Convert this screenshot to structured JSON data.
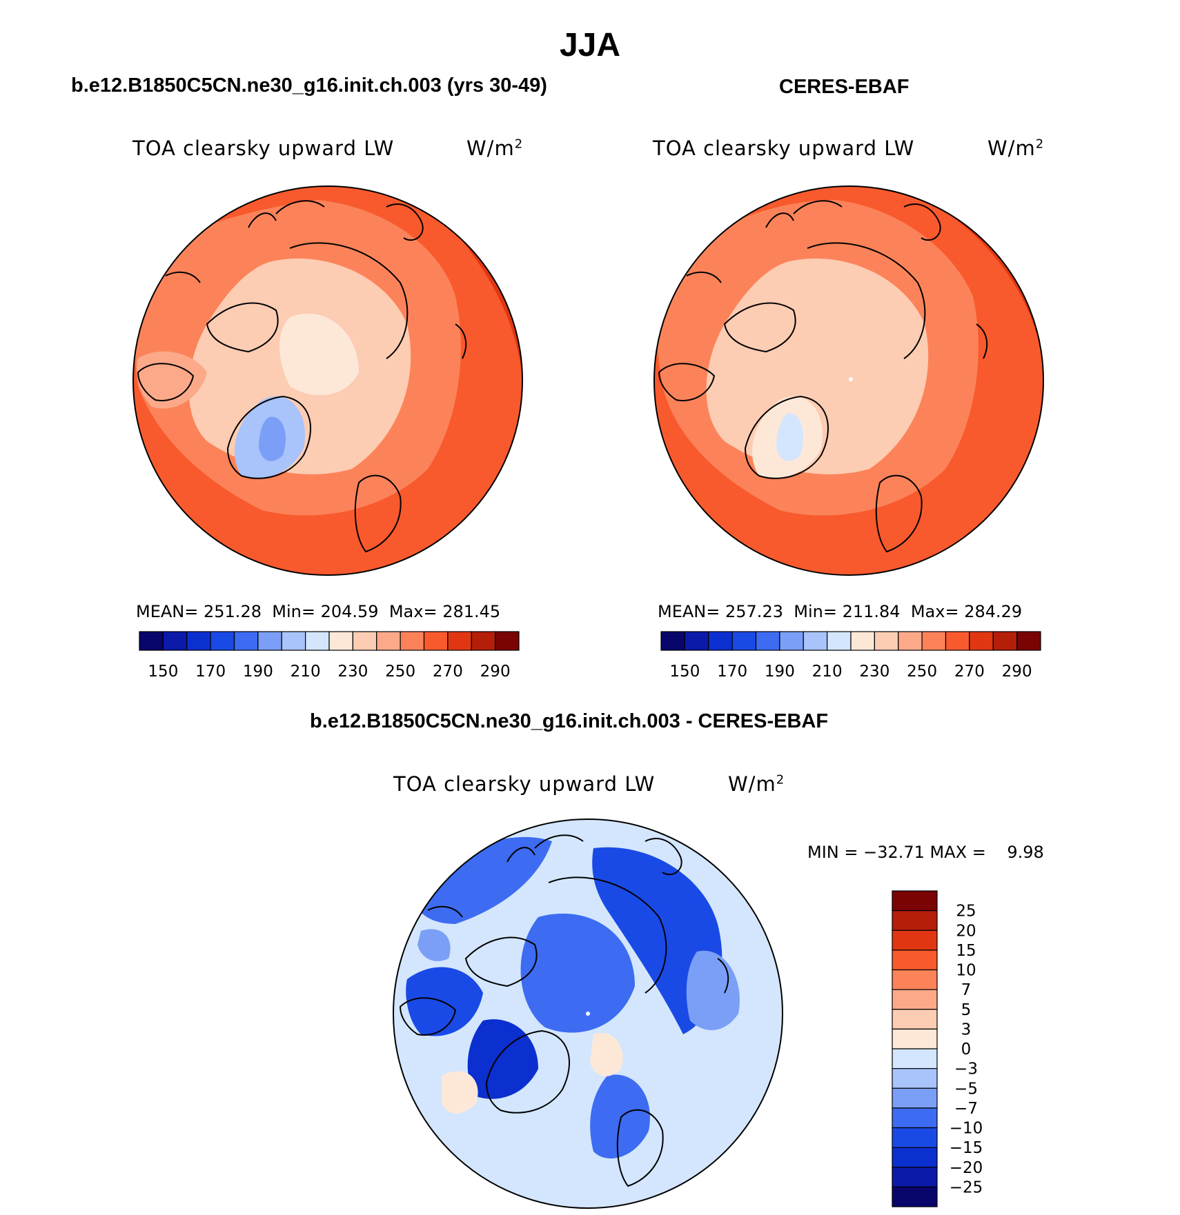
{
  "figure": {
    "season": "JJA",
    "panels": [
      {
        "case_title": "b.e12.B1850C5CN.ne30_g16.init.ch.003 (yrs 30-49)",
        "variable": "TOA clearsky upward LW",
        "units": "W/m",
        "units_exponent": "2",
        "stats": {
          "mean_label": "MEAN=",
          "mean": "251.28",
          "min_label": "Min=",
          "min": "204.59",
          "max_label": "Max=",
          "max": "281.45"
        }
      },
      {
        "case_title": "CERES-EBAF",
        "variable": "TOA clearsky upward LW",
        "units": "W/m",
        "units_exponent": "2",
        "stats": {
          "mean_label": "MEAN=",
          "mean": "257.23",
          "min_label": "Min=",
          "min": "211.84",
          "max_label": "Max=",
          "max": "284.29"
        }
      }
    ],
    "diff_panel": {
      "case_title": "b.e12.B1850C5CN.ne30_g16.init.ch.003 - CERES-EBAF",
      "variable": "TOA clearsky upward LW",
      "units": "W/m",
      "units_exponent": "2",
      "minmax_label": "MIN = −32.71 MAX =    9.98"
    },
    "colorbar_abs": {
      "colors": [
        "#08066b",
        "#0b1aa8",
        "#0c2fd0",
        "#1a4ae6",
        "#3d6cf2",
        "#7b9ff7",
        "#a9c3fb",
        "#d3e6fd",
        "#fde8d8",
        "#fcccb3",
        "#fca98a",
        "#fc8359",
        "#f85a2d",
        "#e03712",
        "#b51e08",
        "#7a0303"
      ],
      "tick_labels": [
        "150",
        "170",
        "190",
        "210",
        "230",
        "250",
        "270",
        "290"
      ]
    },
    "colorbar_diff": {
      "colors": [
        "#7a0303",
        "#b51e08",
        "#e03712",
        "#f85a2d",
        "#fc8359",
        "#fca98a",
        "#fccdb3",
        "#fde8d8",
        "#d3e6fd",
        "#a9c3fb",
        "#7b9ff7",
        "#3d6cf2",
        "#1a4ae6",
        "#0c2fd0",
        "#0b1aa8",
        "#08066b"
      ],
      "tick_labels": [
        "25",
        "20",
        "15",
        "10",
        "7",
        "5",
        "3",
        "0",
        "−3",
        "−5",
        "−7",
        "−10",
        "−15",
        "−20",
        "−25"
      ]
    }
  }
}
